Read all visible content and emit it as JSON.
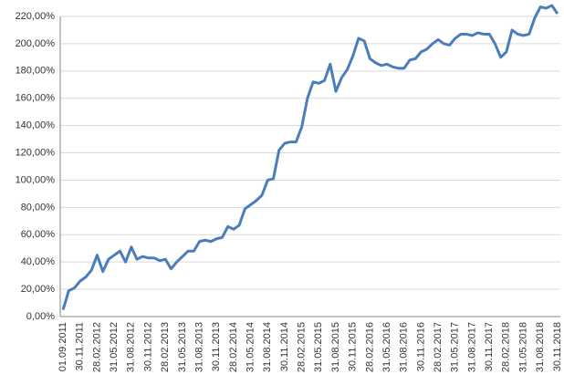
{
  "chart_data": {
    "type": "line",
    "categories": [
      "01.09.2011",
      null,
      null,
      "30.11.2011",
      null,
      null,
      "28.02.2012",
      null,
      null,
      "31.05.2012",
      null,
      null,
      "31.08.2012",
      null,
      null,
      "30.11.2012",
      null,
      null,
      "28.02.2013",
      null,
      null,
      "31.05.2013",
      null,
      null,
      "31.08.2013",
      null,
      null,
      "30.11.2013",
      null,
      null,
      "28.02.2014",
      null,
      null,
      "31.05.2014",
      null,
      null,
      "31.08.2014",
      null,
      null,
      "30.11.2014",
      null,
      null,
      "28.02.2015",
      null,
      null,
      "31.05.2015",
      null,
      null,
      "31.08.2015",
      null,
      null,
      "30.11.2015",
      null,
      null,
      "28.02.2016",
      null,
      null,
      "31.05.2016",
      null,
      null,
      "31.08.2016",
      null,
      null,
      "30.11.2016",
      null,
      null,
      "28.02.2017",
      null,
      null,
      "31.05.2017",
      null,
      null,
      "31.08.2017",
      null,
      null,
      "30.11.2017",
      null,
      null,
      "28.02.2018",
      null,
      null,
      "31.05.2018",
      null,
      null,
      "31.08.2018",
      null,
      null,
      "30.11.2018"
    ],
    "values": [
      5,
      19,
      21,
      26,
      29,
      34,
      45,
      33,
      42,
      45,
      48,
      40,
      51,
      42,
      44,
      43,
      43,
      41,
      42,
      35,
      40,
      44,
      48,
      48,
      55,
      56,
      55,
      57,
      58,
      66,
      64,
      67,
      79,
      82,
      85,
      89,
      100,
      101,
      122,
      127,
      128,
      128,
      139,
      160,
      172,
      171,
      173,
      185,
      165,
      175,
      181,
      191,
      204,
      202,
      189,
      186,
      184,
      185,
      183,
      182,
      182,
      188,
      189,
      194,
      196,
      200,
      203,
      200,
      199,
      204,
      207,
      207,
      206,
      208,
      207,
      207,
      200,
      190,
      194,
      210,
      207,
      206,
      207,
      219,
      227,
      226,
      228,
      222
    ],
    "color": "#4a7ebb",
    "ylim": [
      0,
      220
    ],
    "yticks": [
      {
        "value": 0,
        "label": "0,00%"
      },
      {
        "value": 20,
        "label": "20,00%"
      },
      {
        "value": 40,
        "label": "40,00%"
      },
      {
        "value": 60,
        "label": "60,00%"
      },
      {
        "value": 80,
        "label": "80,00%"
      },
      {
        "value": 100,
        "label": "100,00%"
      },
      {
        "value": 120,
        "label": "120,00%"
      },
      {
        "value": 140,
        "label": "140,00%"
      },
      {
        "value": 160,
        "label": "160,00%"
      },
      {
        "value": 180,
        "label": "180,00%"
      },
      {
        "value": 200,
        "label": "200,00%"
      },
      {
        "value": 220,
        "label": "220,00%"
      }
    ],
    "grid": true
  }
}
